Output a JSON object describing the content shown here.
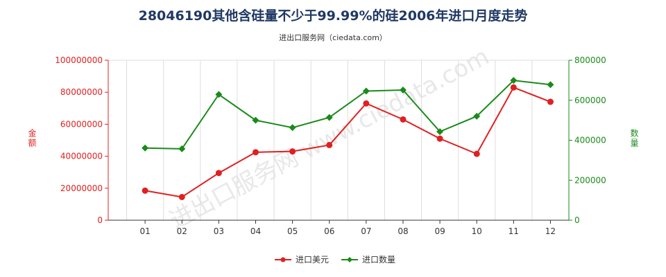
{
  "title": "28046190其他含硅量不少于99.99%的硅2006年进口月度走势",
  "subtitle": "进出口服务网（ciedata.com）",
  "watermark": "进出口服务网 www.ciedata.com",
  "chart_data": {
    "type": "line",
    "categories": [
      "01",
      "02",
      "03",
      "04",
      "05",
      "06",
      "07",
      "08",
      "09",
      "10",
      "11",
      "12"
    ],
    "series": [
      {
        "name": "进口美元",
        "axis": "left",
        "color": "#e02020",
        "values": [
          18500000,
          14500000,
          29500000,
          42500000,
          43000000,
          47000000,
          73000000,
          63000000,
          51000000,
          41500000,
          83000000,
          74000000
        ]
      },
      {
        "name": "进口数量",
        "axis": "right",
        "color": "#1a8a1a",
        "values": [
          361000,
          357000,
          629000,
          500000,
          463000,
          514000,
          646000,
          651000,
          443000,
          520000,
          699000,
          678000
        ]
      }
    ],
    "ylabel_left": "金额",
    "ylabel_right": "数量",
    "ylim_left": [
      0,
      100000000
    ],
    "ylim_right": [
      0,
      800000
    ],
    "yticks_left": [
      "0",
      "20000000",
      "40000000",
      "60000000",
      "80000000",
      "100000000"
    ],
    "yticks_right": [
      "0",
      "200000",
      "400000",
      "600000",
      "800000"
    ],
    "grid": "vertical",
    "legend_placement": "bottom-center"
  }
}
